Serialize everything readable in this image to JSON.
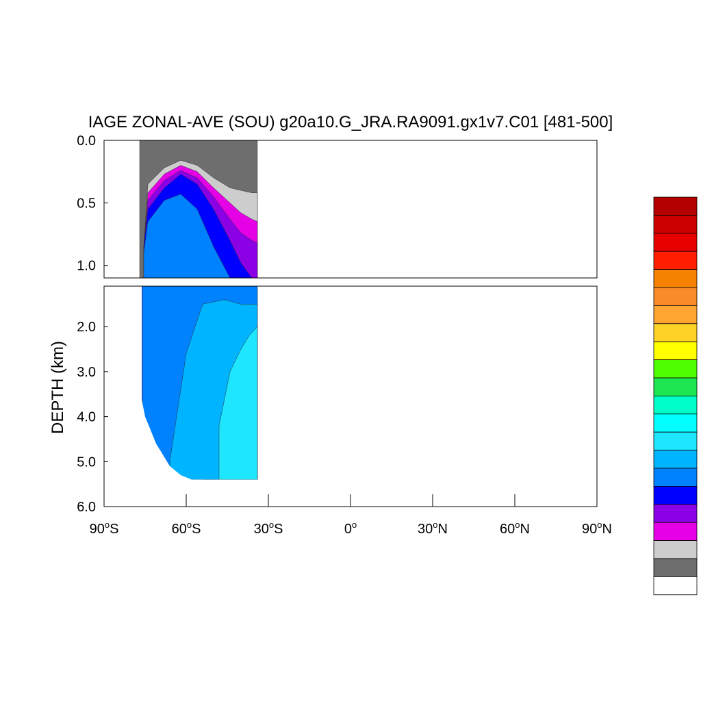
{
  "chart_data": {
    "type": "contour",
    "title": "IAGE ZONAL-AVE (SOU) g20a10.G_JRA.RA9091.gx1v7.C01 [481-500]",
    "ylabel": "DEPTH (km)",
    "xlabel": "",
    "xlim": [
      -90,
      90
    ],
    "upper_panel": {
      "ylim": [
        0.0,
        1.1
      ],
      "y_ticks": [
        {
          "value": 0.0,
          "label": "0.0"
        },
        {
          "value": 0.5,
          "label": "0.5"
        },
        {
          "value": 1.0,
          "label": "1.0"
        }
      ]
    },
    "lower_panel": {
      "ylim": [
        1.1,
        6.0
      ],
      "y_ticks": [
        {
          "value": 2.0,
          "label": "2.0"
        },
        {
          "value": 3.0,
          "label": "3.0"
        },
        {
          "value": 4.0,
          "label": "4.0"
        },
        {
          "value": 5.0,
          "label": "5.0"
        },
        {
          "value": 6.0,
          "label": "6.0"
        }
      ]
    },
    "x_ticks": [
      {
        "value": -90,
        "num": "90",
        "hemi": "S"
      },
      {
        "value": -60,
        "num": "60",
        "hemi": "S"
      },
      {
        "value": -30,
        "num": "30",
        "hemi": "S"
      },
      {
        "value": 0,
        "num": "0",
        "hemi": ""
      },
      {
        "value": 30,
        "num": "30",
        "hemi": "N"
      },
      {
        "value": 60,
        "num": "60",
        "hemi": "N"
      },
      {
        "value": 90,
        "num": "90",
        "hemi": "N"
      }
    ],
    "colorbar_colors": [
      "#b40000",
      "#cd0000",
      "#e60000",
      "#ff1e00",
      "#f58200",
      "#f98c28",
      "#ffa532",
      "#ffd228",
      "#ffff00",
      "#50ff00",
      "#1ee650",
      "#00ffc8",
      "#00ffff",
      "#1ee6ff",
      "#00b4ff",
      "#0082ff",
      "#0000ff",
      "#8c00e6",
      "#e600e6",
      "#cdcdcd",
      "#6e6e6e",
      "#ffffff"
    ],
    "data_extent": {
      "lat_min": -77,
      "lat_max": -34,
      "depth_max": 5.4
    },
    "bands": [
      {
        "color": "#6e6e6e",
        "description": "surface layer",
        "lat": [
          -77.0,
          -74.0,
          -68.0,
          -62.0,
          -56.0,
          -50.0,
          -44.0,
          -40.0,
          -36.0,
          -34.0
        ],
        "top": [
          0.0,
          0.0,
          0.0,
          0.0,
          0.0,
          0.0,
          0.0,
          0.0,
          0.0,
          0.0
        ]
      },
      {
        "color": "#cdcdcd",
        "lat": [
          -75.5,
          -74.0,
          -68.0,
          -62.0,
          -56.0,
          -50.0,
          -44.0,
          -40.0,
          -36.0,
          -34.0
        ],
        "top": [
          0.85,
          0.35,
          0.22,
          0.16,
          0.2,
          0.3,
          0.38,
          0.4,
          0.42,
          0.42
        ]
      },
      {
        "color": "#e600e6",
        "lat": [
          -75.5,
          -74.0,
          -68.0,
          -62.0,
          -56.0,
          -50.0,
          -44.0,
          -40.0,
          -36.0,
          -34.0
        ],
        "top": [
          0.85,
          0.42,
          0.27,
          0.2,
          0.25,
          0.38,
          0.5,
          0.58,
          0.63,
          0.65
        ]
      },
      {
        "color": "#8c00e6",
        "lat": [
          -75.5,
          -74.0,
          -68.0,
          -62.0,
          -56.0,
          -50.0,
          -44.0,
          -40.0,
          -36.0,
          -34.0
        ],
        "top": [
          0.85,
          0.48,
          0.32,
          0.24,
          0.3,
          0.45,
          0.63,
          0.74,
          0.8,
          0.82
        ]
      },
      {
        "color": "#0000ff",
        "lat": [
          -75.5,
          -74.0,
          -68.0,
          -62.0,
          -56.0,
          -50.0,
          -44.0,
          -40.0,
          -36.0,
          -34.0
        ],
        "top": [
          0.85,
          0.55,
          0.38,
          0.27,
          0.35,
          0.55,
          0.8,
          0.98,
          1.1,
          1.12
        ]
      },
      {
        "color": "#0082ff",
        "lat": [
          -75.5,
          -74.0,
          -68.0,
          -62.0,
          -56.0,
          -50.0,
          -44.0,
          -40.0,
          -36.0,
          -34.0
        ],
        "top": [
          0.9,
          0.65,
          0.48,
          0.43,
          0.55,
          0.85,
          1.15,
          1.3,
          1.45,
          1.55
        ]
      }
    ]
  }
}
